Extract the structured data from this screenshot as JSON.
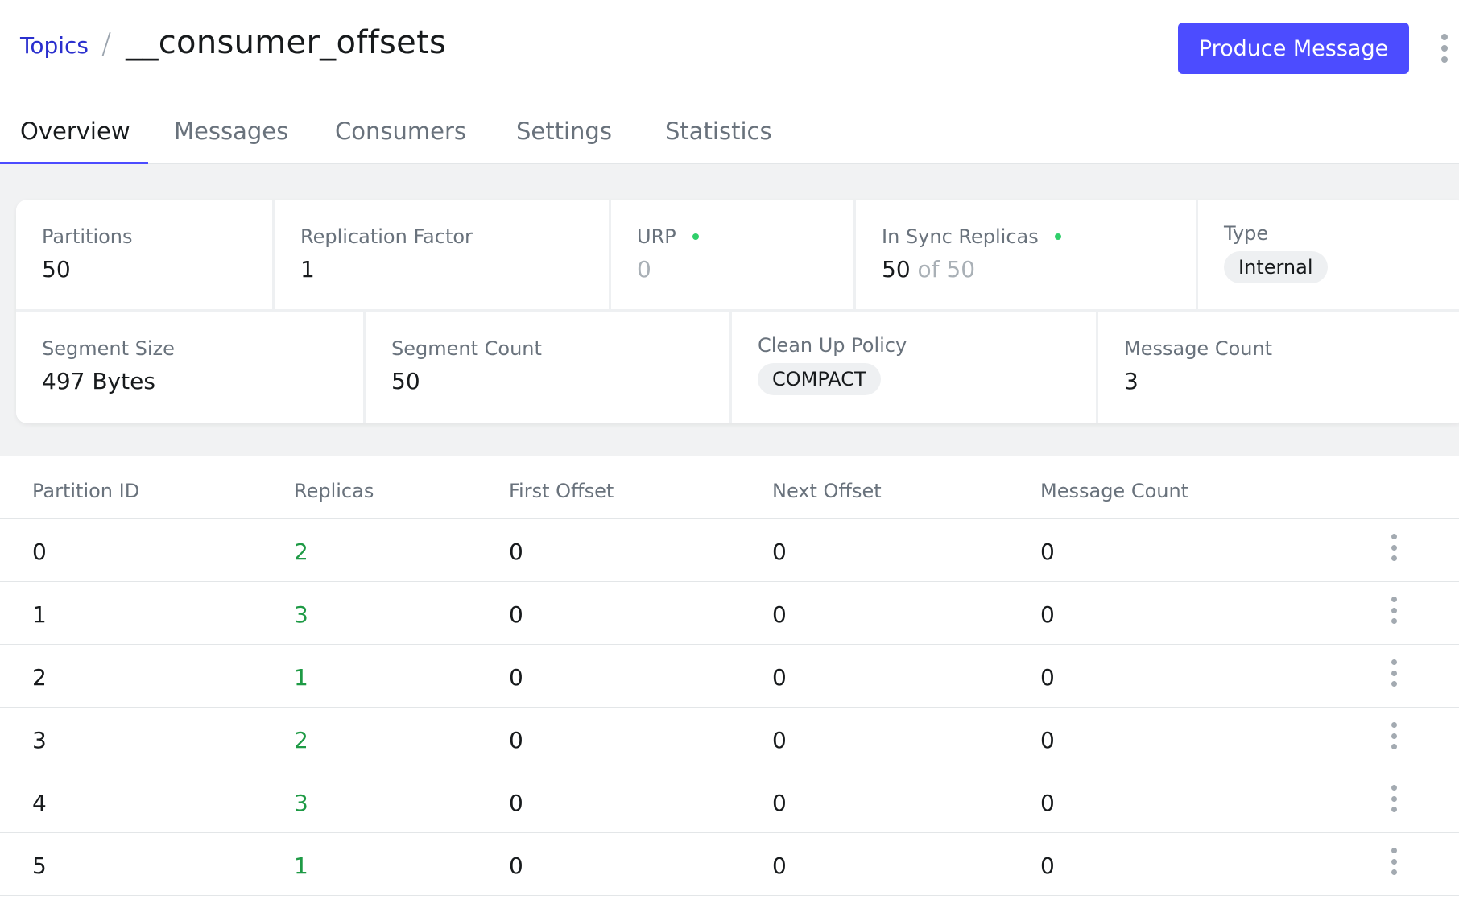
{
  "breadcrumb": {
    "parent": "Topics",
    "separator": "/",
    "title": "__consumer_offsets"
  },
  "actions": {
    "produce_label": "Produce Message"
  },
  "tabs": [
    {
      "label": "Overview",
      "active": true
    },
    {
      "label": "Messages",
      "active": false
    },
    {
      "label": "Consumers",
      "active": false
    },
    {
      "label": "Settings",
      "active": false
    },
    {
      "label": "Statistics",
      "active": false
    }
  ],
  "metrics": {
    "partitions": {
      "label": "Partitions",
      "value": "50"
    },
    "replication_factor": {
      "label": "Replication Factor",
      "value": "1"
    },
    "urp": {
      "label": "URP",
      "value": "0"
    },
    "in_sync_replicas": {
      "label": "In Sync Replicas",
      "value": "50",
      "of_text": "of 50"
    },
    "type": {
      "label": "Type",
      "value": "Internal"
    },
    "segment_size": {
      "label": "Segment Size",
      "value": "497 Bytes"
    },
    "segment_count": {
      "label": "Segment Count",
      "value": "50"
    },
    "cleanup_policy": {
      "label": "Clean Up Policy",
      "value": "COMPACT"
    },
    "message_count": {
      "label": "Message Count",
      "value": "3"
    }
  },
  "table": {
    "headers": [
      "Partition ID",
      "Replicas",
      "First Offset",
      "Next Offset",
      "Message Count"
    ],
    "rows": [
      {
        "id": "0",
        "replicas": "2",
        "first": "0",
        "next": "0",
        "count": "0"
      },
      {
        "id": "1",
        "replicas": "3",
        "first": "0",
        "next": "0",
        "count": "0"
      },
      {
        "id": "2",
        "replicas": "1",
        "first": "0",
        "next": "0",
        "count": "0"
      },
      {
        "id": "3",
        "replicas": "2",
        "first": "0",
        "next": "0",
        "count": "0"
      },
      {
        "id": "4",
        "replicas": "3",
        "first": "0",
        "next": "0",
        "count": "0"
      },
      {
        "id": "5",
        "replicas": "1",
        "first": "0",
        "next": "0",
        "count": "0"
      }
    ]
  },
  "colors": {
    "accent": "#4c4cff",
    "link": "#2a2fce",
    "replica_green": "#1e9a45",
    "status_dot": "#2fcf6a"
  }
}
